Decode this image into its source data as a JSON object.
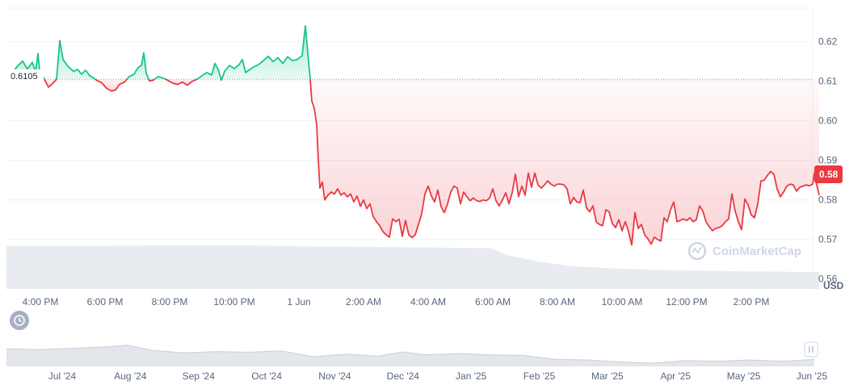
{
  "brand": {
    "watermark": "CoinMarketCap"
  },
  "colors": {
    "up": "#16c784",
    "down": "#ea3943",
    "grid": "#eff2f5",
    "volume": "#e6e9ee",
    "navigator": "#e3e6eb",
    "axis_text": "#58667e"
  },
  "reference": {
    "open_label": "0.6105"
  },
  "current": {
    "price_label": "0.58"
  },
  "icons": {
    "history": "history-icon",
    "handle": "grip-handle-icon"
  },
  "chart_data": {
    "type": "line",
    "unit": "USD",
    "reference_value": 0.6105,
    "ylim": [
      0.5575,
      0.6285
    ],
    "yticks": [
      0.56,
      0.57,
      0.58,
      0.59,
      0.6,
      0.61,
      0.62
    ],
    "ytick_labels": [
      "0.56",
      "0.57",
      "0.58",
      "0.59",
      "0.60",
      "0.61",
      "0.62"
    ],
    "xticks": [
      "4:00 PM",
      "6:00 PM",
      "8:00 PM",
      "10:00 PM",
      "1 Jun",
      "2:00 AM",
      "4:00 AM",
      "6:00 AM",
      "8:00 AM",
      "10:00 AM",
      "12:00 PM",
      "2:00 PM"
    ],
    "price_points": [
      [
        0,
        0.6109
      ],
      [
        6,
        0.6115
      ],
      [
        13,
        0.6137
      ],
      [
        20,
        0.6151
      ],
      [
        26,
        0.6131
      ],
      [
        32,
        0.6148
      ],
      [
        36,
        0.6124
      ],
      [
        39,
        0.617
      ],
      [
        41,
        0.6128
      ],
      [
        52,
        0.6085
      ],
      [
        56,
        0.6092
      ],
      [
        62,
        0.6105
      ],
      [
        66,
        0.6203
      ],
      [
        70,
        0.6155
      ],
      [
        76,
        0.6138
      ],
      [
        83,
        0.6125
      ],
      [
        88,
        0.613
      ],
      [
        93,
        0.6118
      ],
      [
        98,
        0.6128
      ],
      [
        103,
        0.6114
      ],
      [
        108,
        0.6108
      ],
      [
        112,
        0.6102
      ],
      [
        118,
        0.6096
      ],
      [
        124,
        0.6082
      ],
      [
        130,
        0.6075
      ],
      [
        135,
        0.6078
      ],
      [
        140,
        0.6092
      ],
      [
        146,
        0.6098
      ],
      [
        152,
        0.6112
      ],
      [
        158,
        0.6118
      ],
      [
        163,
        0.6135
      ],
      [
        167,
        0.614
      ],
      [
        170,
        0.6172
      ],
      [
        173,
        0.612
      ],
      [
        177,
        0.6101
      ],
      [
        182,
        0.6103
      ],
      [
        188,
        0.6112
      ],
      [
        194,
        0.6108
      ],
      [
        200,
        0.6102
      ],
      [
        206,
        0.6095
      ],
      [
        212,
        0.6092
      ],
      [
        218,
        0.6098
      ],
      [
        224,
        0.609
      ],
      [
        230,
        0.61
      ],
      [
        236,
        0.6105
      ],
      [
        242,
        0.6114
      ],
      [
        248,
        0.6122
      ],
      [
        254,
        0.6116
      ],
      [
        258,
        0.6145
      ],
      [
        262,
        0.613
      ],
      [
        266,
        0.6103
      ],
      [
        270,
        0.6125
      ],
      [
        276,
        0.614
      ],
      [
        282,
        0.6132
      ],
      [
        288,
        0.6142
      ],
      [
        292,
        0.6155
      ],
      [
        296,
        0.6122
      ],
      [
        300,
        0.6128
      ],
      [
        306,
        0.6136
      ],
      [
        312,
        0.6142
      ],
      [
        318,
        0.6152
      ],
      [
        324,
        0.6163
      ],
      [
        330,
        0.615
      ],
      [
        336,
        0.616
      ],
      [
        342,
        0.6145
      ],
      [
        348,
        0.6162
      ],
      [
        354,
        0.6152
      ],
      [
        360,
        0.6155
      ],
      [
        366,
        0.6165
      ],
      [
        370,
        0.624
      ],
      [
        374,
        0.615
      ],
      [
        376,
        0.6105
      ],
      [
        378,
        0.605
      ],
      [
        381,
        0.6032
      ],
      [
        384,
        0.599
      ],
      [
        386,
        0.59
      ],
      [
        388,
        0.583
      ],
      [
        391,
        0.5845
      ],
      [
        394,
        0.58
      ],
      [
        398,
        0.5812
      ],
      [
        402,
        0.582
      ],
      [
        406,
        0.5815
      ],
      [
        410,
        0.5828
      ],
      [
        414,
        0.5812
      ],
      [
        418,
        0.5818
      ],
      [
        422,
        0.5808
      ],
      [
        426,
        0.5815
      ],
      [
        430,
        0.5795
      ],
      [
        434,
        0.581
      ],
      [
        438,
        0.5784
      ],
      [
        442,
        0.58
      ],
      [
        446,
        0.5778
      ],
      [
        450,
        0.579
      ],
      [
        454,
        0.5758
      ],
      [
        458,
        0.5745
      ],
      [
        462,
        0.5735
      ],
      [
        466,
        0.572
      ],
      [
        470,
        0.5712
      ],
      [
        474,
        0.5706
      ],
      [
        478,
        0.5752
      ],
      [
        482,
        0.5745
      ],
      [
        486,
        0.5751
      ],
      [
        490,
        0.5708
      ],
      [
        494,
        0.5748
      ],
      [
        498,
        0.5712
      ],
      [
        502,
        0.5705
      ],
      [
        506,
        0.5712
      ],
      [
        510,
        0.5738
      ],
      [
        514,
        0.5765
      ],
      [
        518,
        0.5815
      ],
      [
        522,
        0.5835
      ],
      [
        526,
        0.581
      ],
      [
        530,
        0.5795
      ],
      [
        534,
        0.5825
      ],
      [
        538,
        0.5783
      ],
      [
        542,
        0.5768
      ],
      [
        546,
        0.579
      ],
      [
        550,
        0.582
      ],
      [
        554,
        0.5835
      ],
      [
        558,
        0.583
      ],
      [
        562,
        0.579
      ],
      [
        566,
        0.582
      ],
      [
        570,
        0.5808
      ],
      [
        574,
        0.5798
      ],
      [
        578,
        0.5805
      ],
      [
        582,
        0.5798
      ],
      [
        586,
        0.5796
      ],
      [
        590,
        0.58
      ],
      [
        594,
        0.5798
      ],
      [
        598,
        0.5805
      ],
      [
        602,
        0.5828
      ],
      [
        606,
        0.5798
      ],
      [
        610,
        0.5785
      ],
      [
        614,
        0.58
      ],
      [
        618,
        0.5818
      ],
      [
        622,
        0.579
      ],
      [
        626,
        0.5818
      ],
      [
        630,
        0.5865
      ],
      [
        634,
        0.5808
      ],
      [
        638,
        0.5835
      ],
      [
        642,
        0.5812
      ],
      [
        646,
        0.5868
      ],
      [
        650,
        0.5832
      ],
      [
        654,
        0.5868
      ],
      [
        658,
        0.5838
      ],
      [
        662,
        0.583
      ],
      [
        666,
        0.5838
      ],
      [
        670,
        0.5848
      ],
      [
        674,
        0.584
      ],
      [
        678,
        0.5835
      ],
      [
        682,
        0.584
      ],
      [
        686,
        0.584
      ],
      [
        690,
        0.5838
      ],
      [
        694,
        0.5828
      ],
      [
        698,
        0.579
      ],
      [
        702,
        0.5806
      ],
      [
        706,
        0.5795
      ],
      [
        710,
        0.5793
      ],
      [
        714,
        0.5825
      ],
      [
        718,
        0.578
      ],
      [
        722,
        0.577
      ],
      [
        726,
        0.5785
      ],
      [
        730,
        0.5745
      ],
      [
        734,
        0.5738
      ],
      [
        738,
        0.5735
      ],
      [
        742,
        0.5775
      ],
      [
        746,
        0.577
      ],
      [
        750,
        0.574
      ],
      [
        754,
        0.573
      ],
      [
        758,
        0.575
      ],
      [
        762,
        0.5722
      ],
      [
        766,
        0.5745
      ],
      [
        770,
        0.572
      ],
      [
        774,
        0.5686
      ],
      [
        778,
        0.5768
      ],
      [
        782,
        0.5728
      ],
      [
        786,
        0.5738
      ],
      [
        790,
        0.5712
      ],
      [
        794,
        0.5702
      ],
      [
        798,
        0.5688
      ],
      [
        802,
        0.5706
      ],
      [
        806,
        0.57
      ],
      [
        810,
        0.5696
      ],
      [
        814,
        0.5755
      ],
      [
        818,
        0.5745
      ],
      [
        822,
        0.5775
      ],
      [
        826,
        0.5795
      ],
      [
        830,
        0.5745
      ],
      [
        834,
        0.5748
      ],
      [
        838,
        0.5752
      ],
      [
        842,
        0.5748
      ],
      [
        846,
        0.5755
      ],
      [
        850,
        0.5745
      ],
      [
        854,
        0.575
      ],
      [
        858,
        0.5785
      ],
      [
        862,
        0.5772
      ],
      [
        866,
        0.5745
      ],
      [
        870,
        0.5732
      ],
      [
        874,
        0.5722
      ],
      [
        878,
        0.5728
      ],
      [
        882,
        0.573
      ],
      [
        886,
        0.5735
      ],
      [
        890,
        0.5745
      ],
      [
        894,
        0.5752
      ],
      [
        898,
        0.5815
      ],
      [
        902,
        0.5772
      ],
      [
        906,
        0.5745
      ],
      [
        910,
        0.5725
      ],
      [
        914,
        0.5802
      ],
      [
        918,
        0.5788
      ],
      [
        922,
        0.5762
      ],
      [
        926,
        0.5755
      ],
      [
        930,
        0.579
      ],
      [
        934,
        0.5848
      ],
      [
        938,
        0.585
      ],
      [
        942,
        0.5862
      ],
      [
        946,
        0.5872
      ],
      [
        950,
        0.5865
      ],
      [
        954,
        0.5828
      ],
      [
        958,
        0.5808
      ],
      [
        962,
        0.582
      ],
      [
        966,
        0.5835
      ],
      [
        970,
        0.584
      ],
      [
        974,
        0.5838
      ],
      [
        978,
        0.5822
      ],
      [
        982,
        0.5832
      ],
      [
        986,
        0.5835
      ],
      [
        990,
        0.5838
      ],
      [
        994,
        0.5836
      ],
      [
        998,
        0.584
      ],
      [
        1000,
        0.5868
      ],
      [
        1003,
        0.5838
      ],
      [
        1006,
        0.5812
      ]
    ],
    "volume_profile": [
      [
        0,
        0.92
      ],
      [
        100,
        0.92
      ],
      [
        200,
        0.93
      ],
      [
        300,
        0.93
      ],
      [
        370,
        0.91
      ],
      [
        500,
        0.89
      ],
      [
        600,
        0.87
      ],
      [
        620,
        0.72
      ],
      [
        660,
        0.58
      ],
      [
        700,
        0.49
      ],
      [
        760,
        0.43
      ],
      [
        820,
        0.4
      ],
      [
        900,
        0.38
      ],
      [
        1006,
        0.36
      ]
    ],
    "navigator": {
      "xticks": [
        "Jul '24",
        "Aug '24",
        "Sep '24",
        "Oct '24",
        "Nov '24",
        "Dec '24",
        "Jan '25",
        "Feb '25",
        "Mar '25",
        "Apr '25",
        "May '25",
        "Jun '25"
      ],
      "profile": [
        [
          0,
          0.55
        ],
        [
          40,
          0.52
        ],
        [
          80,
          0.56
        ],
        [
          120,
          0.6
        ],
        [
          150,
          0.66
        ],
        [
          180,
          0.5
        ],
        [
          220,
          0.42
        ],
        [
          260,
          0.46
        ],
        [
          300,
          0.44
        ],
        [
          340,
          0.48
        ],
        [
          380,
          0.3
        ],
        [
          420,
          0.38
        ],
        [
          460,
          0.32
        ],
        [
          490,
          0.45
        ],
        [
          520,
          0.36
        ],
        [
          560,
          0.4
        ],
        [
          600,
          0.36
        ],
        [
          640,
          0.34
        ],
        [
          680,
          0.22
        ],
        [
          720,
          0.2
        ],
        [
          760,
          0.14
        ],
        [
          800,
          0.1
        ],
        [
          840,
          0.18
        ],
        [
          880,
          0.16
        ],
        [
          920,
          0.2
        ],
        [
          960,
          0.16
        ],
        [
          1000,
          0.22
        ]
      ]
    }
  }
}
